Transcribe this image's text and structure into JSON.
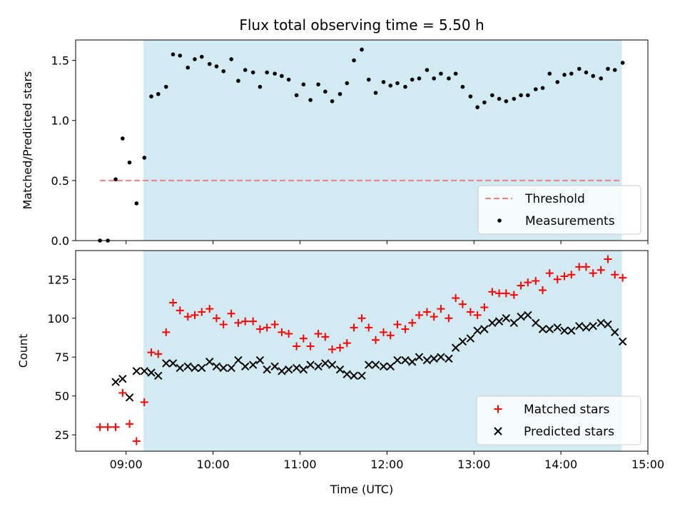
{
  "figure": {
    "title": "Flux total observing time = 5.50 h",
    "xlabel": "Time (UTC)"
  },
  "chart_data": [
    {
      "type": "scatter",
      "ylabel": "Matched/Predicted stars",
      "x_time_hours": true,
      "xlim": [
        8.42,
        15.0
      ],
      "ylim": [
        0.0,
        1.67
      ],
      "yticks": [
        0.0,
        0.5,
        1.0,
        1.5
      ],
      "ytick_labels": [
        "0.0",
        "0.5",
        "1.0",
        "1.5"
      ],
      "xticks": [
        9,
        10,
        11,
        12,
        13,
        14,
        15
      ],
      "shaded_span": {
        "x0": 9.2,
        "x1": 14.7,
        "color": "#add8e6"
      },
      "threshold": {
        "name": "Threshold",
        "value": 0.5,
        "x0": 8.7,
        "x1": 14.7,
        "color": "#f08080"
      },
      "legend": {
        "placement": "lower right",
        "entries": [
          "Threshold",
          "Measurements"
        ]
      },
      "series": [
        {
          "name": "Measurements",
          "marker": "dot",
          "color": "#000000",
          "points": [
            [
              8.7,
              0.0
            ],
            [
              8.79,
              0.0
            ],
            [
              8.88,
              0.51
            ],
            [
              8.96,
              0.85
            ],
            [
              9.04,
              0.65
            ],
            [
              9.12,
              0.31
            ],
            [
              9.21,
              0.69
            ],
            [
              9.29,
              1.2
            ],
            [
              9.37,
              1.22
            ],
            [
              9.46,
              1.28
            ],
            [
              9.54,
              1.55
            ],
            [
              9.62,
              1.54
            ],
            [
              9.71,
              1.44
            ],
            [
              9.79,
              1.51
            ],
            [
              9.87,
              1.53
            ],
            [
              9.96,
              1.47
            ],
            [
              10.04,
              1.45
            ],
            [
              10.12,
              1.41
            ],
            [
              10.21,
              1.51
            ],
            [
              10.29,
              1.33
            ],
            [
              10.37,
              1.42
            ],
            [
              10.46,
              1.4
            ],
            [
              10.54,
              1.28
            ],
            [
              10.62,
              1.4
            ],
            [
              10.71,
              1.39
            ],
            [
              10.79,
              1.37
            ],
            [
              10.87,
              1.34
            ],
            [
              10.96,
              1.21
            ],
            [
              11.04,
              1.3
            ],
            [
              11.12,
              1.17
            ],
            [
              11.21,
              1.3
            ],
            [
              11.29,
              1.24
            ],
            [
              11.37,
              1.16
            ],
            [
              11.46,
              1.22
            ],
            [
              11.54,
              1.31
            ],
            [
              11.62,
              1.5
            ],
            [
              11.71,
              1.59
            ],
            [
              11.79,
              1.34
            ],
            [
              11.87,
              1.23
            ],
            [
              11.96,
              1.32
            ],
            [
              12.04,
              1.29
            ],
            [
              12.12,
              1.31
            ],
            [
              12.21,
              1.28
            ],
            [
              12.29,
              1.34
            ],
            [
              12.37,
              1.35
            ],
            [
              12.46,
              1.42
            ],
            [
              12.54,
              1.35
            ],
            [
              12.62,
              1.39
            ],
            [
              12.71,
              1.35
            ],
            [
              12.79,
              1.39
            ],
            [
              12.87,
              1.28
            ],
            [
              12.96,
              1.2
            ],
            [
              13.04,
              1.11
            ],
            [
              13.12,
              1.15
            ],
            [
              13.21,
              1.21
            ],
            [
              13.29,
              1.18
            ],
            [
              13.37,
              1.16
            ],
            [
              13.46,
              1.18
            ],
            [
              13.54,
              1.21
            ],
            [
              13.62,
              1.21
            ],
            [
              13.71,
              1.26
            ],
            [
              13.79,
              1.27
            ],
            [
              13.87,
              1.39
            ],
            [
              13.96,
              1.32
            ],
            [
              14.04,
              1.38
            ],
            [
              14.12,
              1.39
            ],
            [
              14.21,
              1.43
            ],
            [
              14.29,
              1.4
            ],
            [
              14.37,
              1.37
            ],
            [
              14.46,
              1.35
            ],
            [
              14.54,
              1.43
            ],
            [
              14.62,
              1.42
            ],
            [
              14.71,
              1.48
            ]
          ]
        }
      ]
    },
    {
      "type": "scatter",
      "ylabel": "Count",
      "x_time_hours": true,
      "xlim": [
        8.42,
        15.0
      ],
      "ylim": [
        14.5,
        143.5
      ],
      "yticks": [
        25,
        50,
        75,
        100,
        125
      ],
      "ytick_labels": [
        "25",
        "50",
        "75",
        "100",
        "125"
      ],
      "xticks": [
        9,
        10,
        11,
        12,
        13,
        14,
        15
      ],
      "xtick_labels": [
        "09:00",
        "10:00",
        "11:00",
        "12:00",
        "13:00",
        "14:00",
        "15:00"
      ],
      "shaded_span": {
        "x0": 9.2,
        "x1": 14.7,
        "color": "#add8e6"
      },
      "legend": {
        "placement": "lower right",
        "entries": [
          "Matched stars",
          "Predicted stars"
        ]
      },
      "series": [
        {
          "name": "Matched stars",
          "marker": "plus",
          "color": "#ff0000",
          "points": [
            [
              8.7,
              30
            ],
            [
              8.79,
              30
            ],
            [
              8.88,
              30
            ],
            [
              8.96,
              52
            ],
            [
              9.04,
              32
            ],
            [
              9.12,
              21
            ],
            [
              9.21,
              46
            ],
            [
              9.29,
              78
            ],
            [
              9.37,
              77
            ],
            [
              9.46,
              91
            ],
            [
              9.54,
              110
            ],
            [
              9.62,
              105
            ],
            [
              9.71,
              101
            ],
            [
              9.79,
              102
            ],
            [
              9.87,
              104
            ],
            [
              9.96,
              106
            ],
            [
              10.04,
              100
            ],
            [
              10.12,
              96
            ],
            [
              10.21,
              103
            ],
            [
              10.29,
              97
            ],
            [
              10.37,
              98
            ],
            [
              10.46,
              98
            ],
            [
              10.54,
              93
            ],
            [
              10.62,
              94
            ],
            [
              10.71,
              96
            ],
            [
              10.79,
              91
            ],
            [
              10.87,
              90
            ],
            [
              10.96,
              82
            ],
            [
              11.04,
              87
            ],
            [
              11.12,
              82
            ],
            [
              11.21,
              90
            ],
            [
              11.29,
              88
            ],
            [
              11.37,
              80
            ],
            [
              11.46,
              81
            ],
            [
              11.54,
              84
            ],
            [
              11.62,
              94
            ],
            [
              11.71,
              100
            ],
            [
              11.79,
              94
            ],
            [
              11.87,
              86
            ],
            [
              11.96,
              91
            ],
            [
              12.04,
              89
            ],
            [
              12.12,
              96
            ],
            [
              12.21,
              93
            ],
            [
              12.29,
              97
            ],
            [
              12.37,
              102
            ],
            [
              12.46,
              104
            ],
            [
              12.54,
              101
            ],
            [
              12.62,
              106
            ],
            [
              12.71,
              100
            ],
            [
              12.79,
              113
            ],
            [
              12.87,
              109
            ],
            [
              12.96,
              104
            ],
            [
              13.04,
              102
            ],
            [
              13.12,
              107
            ],
            [
              13.21,
              117
            ],
            [
              13.29,
              116
            ],
            [
              13.37,
              116
            ],
            [
              13.46,
              115
            ],
            [
              13.54,
              121
            ],
            [
              13.62,
              123
            ],
            [
              13.71,
              124
            ],
            [
              13.79,
              118
            ],
            [
              13.87,
              129
            ],
            [
              13.96,
              125
            ],
            [
              14.04,
              127
            ],
            [
              14.12,
              128
            ],
            [
              14.21,
              133
            ],
            [
              14.29,
              133
            ],
            [
              14.37,
              129
            ],
            [
              14.46,
              131
            ],
            [
              14.54,
              138
            ],
            [
              14.62,
              128
            ],
            [
              14.71,
              126
            ]
          ]
        },
        {
          "name": "Predicted stars",
          "marker": "x",
          "color": "#000000",
          "points": [
            [
              8.88,
              59
            ],
            [
              8.96,
              61
            ],
            [
              9.04,
              49
            ],
            [
              9.12,
              66
            ],
            [
              9.21,
              66
            ],
            [
              9.29,
              65
            ],
            [
              9.37,
              63
            ],
            [
              9.46,
              71
            ],
            [
              9.54,
              71
            ],
            [
              9.62,
              68
            ],
            [
              9.71,
              69
            ],
            [
              9.79,
              68
            ],
            [
              9.87,
              68
            ],
            [
              9.96,
              72
            ],
            [
              10.04,
              69
            ],
            [
              10.12,
              68
            ],
            [
              10.21,
              68
            ],
            [
              10.29,
              73
            ],
            [
              10.37,
              69
            ],
            [
              10.46,
              70
            ],
            [
              10.54,
              73
            ],
            [
              10.62,
              67
            ],
            [
              10.71,
              69
            ],
            [
              10.79,
              66
            ],
            [
              10.87,
              67
            ],
            [
              10.96,
              68
            ],
            [
              11.04,
              67
            ],
            [
              11.12,
              70
            ],
            [
              11.21,
              69
            ],
            [
              11.29,
              71
            ],
            [
              11.37,
              70
            ],
            [
              11.46,
              67
            ],
            [
              11.54,
              64
            ],
            [
              11.62,
              63
            ],
            [
              11.71,
              63
            ],
            [
              11.79,
              70
            ],
            [
              11.87,
              70
            ],
            [
              11.96,
              69
            ],
            [
              12.04,
              69
            ],
            [
              12.12,
              73
            ],
            [
              12.21,
              73
            ],
            [
              12.29,
              72
            ],
            [
              12.37,
              75
            ],
            [
              12.46,
              73
            ],
            [
              12.54,
              74
            ],
            [
              12.62,
              75
            ],
            [
              12.71,
              74
            ],
            [
              12.79,
              81
            ],
            [
              12.87,
              85
            ],
            [
              12.96,
              87
            ],
            [
              13.04,
              92
            ],
            [
              13.12,
              93
            ],
            [
              13.21,
              97
            ],
            [
              13.29,
              98
            ],
            [
              13.37,
              100
            ],
            [
              13.46,
              97
            ],
            [
              13.54,
              101
            ],
            [
              13.62,
              102
            ],
            [
              13.71,
              97
            ],
            [
              13.79,
              93
            ],
            [
              13.87,
              93
            ],
            [
              13.96,
              94
            ],
            [
              14.04,
              92
            ],
            [
              14.12,
              92
            ],
            [
              14.21,
              95
            ],
            [
              14.29,
              94
            ],
            [
              14.37,
              95
            ],
            [
              14.46,
              97
            ],
            [
              14.54,
              96
            ],
            [
              14.62,
              91
            ],
            [
              14.71,
              85
            ]
          ]
        }
      ]
    }
  ]
}
